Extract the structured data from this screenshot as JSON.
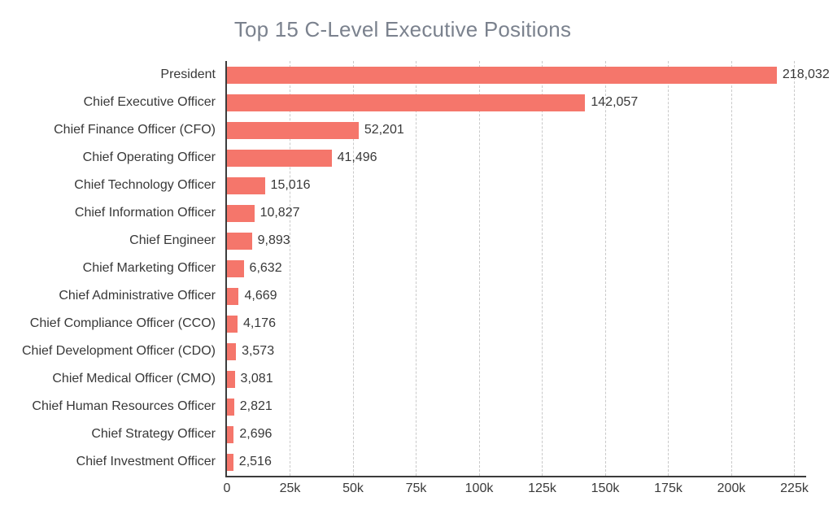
{
  "chart_data": {
    "type": "bar",
    "orientation": "horizontal",
    "title": "Top 15 C-Level Executive Positions",
    "categories": [
      "President",
      "Chief Executive Officer",
      "Chief Finance Officer (CFO)",
      "Chief Operating Officer",
      "Chief Technology Officer",
      "Chief Information Officer",
      "Chief Engineer",
      "Chief Marketing Officer",
      "Chief Administrative Officer",
      "Chief Compliance Officer (CCO)",
      "Chief Development Officer (CDO)",
      "Chief Medical Officer (CMO)",
      "Chief Human Resources Officer",
      "Chief Strategy Officer",
      "Chief Investment Officer"
    ],
    "values": [
      218032,
      142057,
      52201,
      41496,
      15016,
      10827,
      9893,
      6632,
      4669,
      4176,
      3573,
      3081,
      2821,
      2696,
      2516
    ],
    "value_labels": [
      "218,032",
      "142,057",
      "52,201",
      "41,496",
      "15,016",
      "10,827",
      "9,893",
      "6,632",
      "4,669",
      "4,176",
      "3,573",
      "3,081",
      "2,821",
      "2,696",
      "2,516"
    ],
    "xlabel": "",
    "ylabel": "",
    "xlim": [
      0,
      225000
    ],
    "x_ticks": [
      "0",
      "25k",
      "50k",
      "75k",
      "100k",
      "125k",
      "150k",
      "175k",
      "200k",
      "225k"
    ],
    "grid": "vertical-dashed",
    "legend": "none",
    "colors": {
      "bar": "#f5766b",
      "title_text": "#7b828e",
      "label_text": "#383838",
      "gridline": "#c9c9c9",
      "axis_line": "#3c3c3c",
      "background": "#ffffff"
    }
  }
}
